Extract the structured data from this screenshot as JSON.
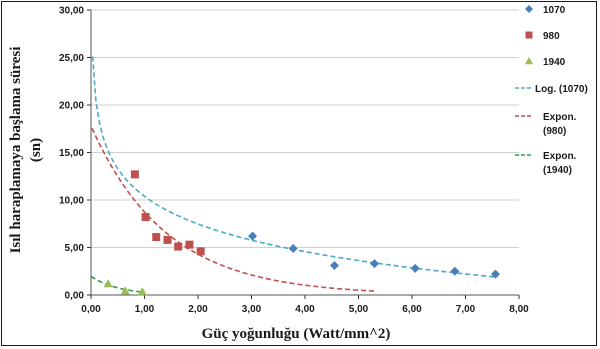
{
  "chart_data": {
    "type": "scatter",
    "title": "",
    "xlabel": "Güç yoğunluğu (Watt/mm^2)",
    "ylabel_line1": "Isıl haraplamaya başlama süresi",
    "ylabel_line2": "(sn)",
    "xlim": [
      0,
      8
    ],
    "ylim": [
      0,
      30
    ],
    "x_ticks": [
      "0,00",
      "1,00",
      "2,00",
      "3,00",
      "4,00",
      "5,00",
      "6,00",
      "7,00",
      "8,00"
    ],
    "y_ticks": [
      "0,00",
      "5,00",
      "10,00",
      "15,00",
      "20,00",
      "25,00",
      "30,00"
    ],
    "grid": "horizontal",
    "legend_position": "right",
    "series": [
      {
        "name": "1070",
        "marker": "diamond",
        "color": "#4a7ebb",
        "points": [
          [
            3.02,
            6.2
          ],
          [
            3.78,
            4.9
          ],
          [
            4.55,
            3.1
          ],
          [
            5.3,
            3.3
          ],
          [
            6.06,
            2.8
          ],
          [
            6.8,
            2.5
          ],
          [
            7.56,
            2.2
          ]
        ]
      },
      {
        "name": "980",
        "marker": "square",
        "color": "#c0504d",
        "points": [
          [
            0.82,
            12.7
          ],
          [
            1.02,
            8.2
          ],
          [
            1.22,
            6.1
          ],
          [
            1.43,
            5.8
          ],
          [
            1.63,
            5.1
          ],
          [
            1.84,
            5.3
          ],
          [
            2.05,
            4.6
          ]
        ]
      },
      {
        "name": "1940",
        "marker": "triangle",
        "color": "#9bbb59",
        "points": [
          [
            0.32,
            1.2
          ],
          [
            0.64,
            0.45
          ],
          [
            0.96,
            0.35
          ]
        ]
      }
    ],
    "trendlines": [
      {
        "name": "Log. (1070)",
        "color": "#4bacc6",
        "type": "log",
        "x_range": [
          0.03,
          7.6
        ]
      },
      {
        "name_line1": "Expon.",
        "name_line2": "(980)",
        "color": "#c0504d",
        "type": "exp",
        "x_range": [
          0.02,
          5.3
        ]
      },
      {
        "name_line1": "Expon.",
        "name_line2": "(1940)",
        "color": "#2e9e46",
        "type": "exp",
        "x_range": [
          0.0,
          1.0
        ]
      }
    ]
  }
}
